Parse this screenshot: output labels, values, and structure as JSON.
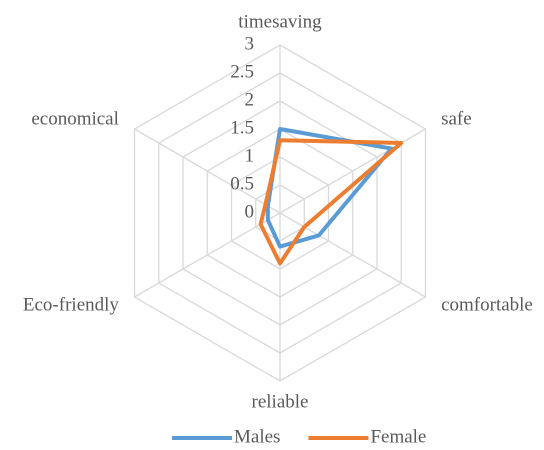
{
  "chart_data": {
    "type": "radar",
    "categories": [
      "timesaving",
      "safe",
      "comfortable",
      "reliable",
      "Eco-friendly",
      "economical"
    ],
    "series": [
      {
        "name": "Males",
        "color": "#5b9bd5",
        "values": [
          1.5,
          2.3,
          0.8,
          0.6,
          0.25,
          0.25
        ]
      },
      {
        "name": "Female",
        "color": "#ed7d31",
        "values": [
          1.3,
          2.5,
          0.5,
          0.9,
          0.4,
          0.3
        ]
      }
    ],
    "ylim": [
      0,
      3
    ],
    "yticks": [
      0,
      0.5,
      1,
      1.5,
      2,
      2.5,
      3
    ],
    "grid": true,
    "legend": "bottom"
  }
}
